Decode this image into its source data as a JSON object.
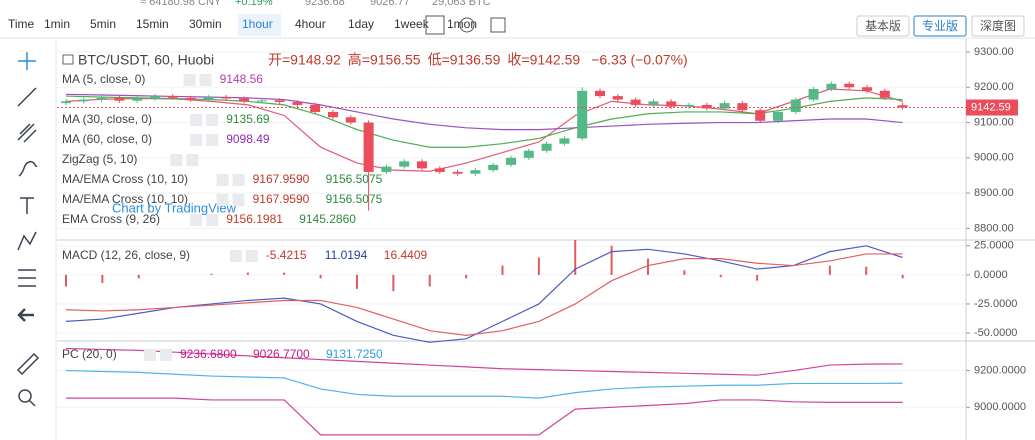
{
  "header": {
    "ticker_stats": [
      "≈ 64180.98 CNY",
      "+0.19%",
      "9236.68",
      "9026.77",
      "29,063 BTC"
    ]
  },
  "toolbar": {
    "label": "Time",
    "intervals": [
      "1min",
      "5min",
      "15min",
      "30min",
      "1hour",
      "4hour",
      "1day",
      "1week",
      "1mon"
    ],
    "active_interval": "1hour",
    "versions": [
      "基本版",
      "专业版",
      "深度图"
    ],
    "active_version": "专业版"
  },
  "price_panel": {
    "symbol": "BTC/USDT, 60, Huobi",
    "ohlc": [
      "开=9148.92",
      "高=9156.55",
      "低=9136.59",
      "收=9142.59"
    ],
    "change": "−6.33 (−0.07%)",
    "indicators": [
      {
        "name": "MA (5, close, 0)",
        "values": [
          "9148.56"
        ],
        "colors": [
          "#b23da3"
        ]
      },
      {
        "name": "MA (30, close, 0)",
        "values": [
          "9135.69"
        ],
        "colors": [
          "#2e8b3e"
        ]
      },
      {
        "name": "MA (60, close, 0)",
        "values": [
          "9098.49"
        ],
        "colors": [
          "#8e2ab0"
        ]
      },
      {
        "name": "ZigZag (5, 10)",
        "values": [],
        "colors": []
      },
      {
        "name": "MA/EMA Cross (10, 10)",
        "values": [
          "9167.9590",
          "9156.5075"
        ],
        "colors": [
          "#c0392b",
          "#2e8b3e"
        ]
      },
      {
        "name": "MA/EMA Cross (10, 10)",
        "values": [
          "9167.9590",
          "9156.5075"
        ],
        "colors": [
          "#c0392b",
          "#2e8b3e"
        ]
      },
      {
        "name": "EMA Cross (9, 26)",
        "values": [
          "9156.1981",
          "9145.2860"
        ],
        "colors": [
          "#c0392b",
          "#2e8b3e"
        ]
      }
    ],
    "watermark": "Chart by TradingView",
    "ylim": [
      8767,
      9334
    ],
    "yticks": [
      {
        "value": 9300,
        "label": "9300.00"
      },
      {
        "value": 9200,
        "label": "9200.00"
      },
      {
        "value": 9100,
        "label": "9100.00"
      },
      {
        "value": 9000,
        "label": "9000.00"
      },
      {
        "value": 8900,
        "label": "8900.00"
      },
      {
        "value": 8800,
        "label": "8800.00"
      }
    ],
    "last_price": {
      "value": 9142.59,
      "label": "9142.59"
    },
    "up_color": "#53b987",
    "down_color": "#eb4d5c",
    "candles": {
      "open": [
        9155,
        9160,
        9165,
        9170,
        9162,
        9168,
        9175,
        9170,
        9165,
        9172,
        9168,
        9160,
        9163,
        9158,
        9150,
        9130,
        9115,
        9100,
        8960,
        8975,
        8990,
        8970,
        8960,
        8955,
        8965,
        8980,
        9000,
        9020,
        9040,
        9055,
        9190,
        9175,
        9165,
        9150,
        9160,
        9145,
        9150,
        9140,
        9155,
        9135,
        9105,
        9130,
        9165,
        9195,
        9210,
        9200,
        9190,
        9148.92
      ],
      "high": [
        9166,
        9171,
        9176,
        9176,
        9174,
        9181,
        9181,
        9176,
        9178,
        9178,
        9174,
        9169,
        9169,
        9164,
        9156,
        9136,
        9121,
        9106,
        8981,
        8996,
        8996,
        8976,
        8966,
        8971,
        8986,
        9006,
        9026,
        9046,
        9061,
        9200,
        9196,
        9181,
        9171,
        9166,
        9166,
        9156,
        9156,
        9161,
        9161,
        9141,
        9136,
        9171,
        9201,
        9216,
        9216,
        9206,
        9196,
        9156.55
      ],
      "low": [
        9149,
        9154,
        9159,
        9156,
        9156,
        9162,
        9164,
        9159,
        9159,
        9162,
        9154,
        9154,
        9152,
        9144,
        9124,
        9109,
        9094,
        8850,
        8954,
        8969,
        8964,
        8954,
        8949,
        8949,
        8959,
        8974,
        8994,
        9014,
        9034,
        9049,
        9169,
        9159,
        9144,
        9144,
        9139,
        9139,
        9134,
        9134,
        9129,
        9099,
        9099,
        9124,
        9159,
        9189,
        9194,
        9184,
        9164,
        9136.59
      ],
      "close": [
        9160,
        9165,
        9170,
        9162,
        9168,
        9175,
        9170,
        9165,
        9172,
        9168,
        9160,
        9163,
        9158,
        9150,
        9130,
        9115,
        9100,
        8960,
        8975,
        8990,
        8970,
        8960,
        8955,
        8965,
        8980,
        9000,
        9020,
        9040,
        9055,
        9190,
        9175,
        9165,
        9150,
        9160,
        9145,
        9150,
        9140,
        9155,
        9135,
        9105,
        9130,
        9165,
        9195,
        9210,
        9200,
        9190,
        9170,
        9142.59
      ]
    },
    "lines": [
      {
        "color": "#e05a7a",
        "values": [
          9160,
          9166,
          9168,
          9167,
          9160,
          9150,
          9120,
          9030,
          8985,
          8965,
          8962,
          8985,
          9015,
          9045,
          9120,
          9160,
          9150,
          9148,
          9138,
          9125,
          9160,
          9195,
          9190,
          9160
        ]
      },
      {
        "color": "#4caf50",
        "values": [
          9175,
          9172,
          9170,
          9168,
          9165,
          9160,
          9150,
          9120,
          9080,
          9050,
          9030,
          9030,
          9040,
          9055,
          9085,
          9110,
          9125,
          9130,
          9130,
          9125,
          9140,
          9160,
          9170,
          9165
        ]
      },
      {
        "color": "#9c4fc0",
        "values": [
          9180,
          9178,
          9176,
          9174,
          9172,
          9170,
          9165,
          9150,
          9130,
          9110,
          9095,
          9085,
          9080,
          9080,
          9085,
          9090,
          9095,
          9098,
          9100,
          9100,
          9105,
          9110,
          9110,
          9100
        ]
      }
    ]
  },
  "macd_panel": {
    "name": "MACD (12, 26, close, 9)",
    "values": [
      "-5.4215",
      "11.0194",
      "16.4409"
    ],
    "colors": [
      "#c0392b",
      "#2a3f9c",
      "#c0392b"
    ],
    "ylim": [
      -56,
      30
    ],
    "yticks": [
      {
        "value": 25,
        "label": "25.0000"
      },
      {
        "value": 0,
        "label": "0.0000"
      },
      {
        "value": -25,
        "label": "-25.0000"
      },
      {
        "value": -50,
        "label": "-50.0000"
      }
    ],
    "histogram_color": "#e05a5a",
    "histogram": [
      -10,
      -7,
      -3,
      0,
      1,
      2,
      2,
      -3,
      -12,
      -14,
      -10,
      -3,
      8,
      15,
      30,
      25,
      14,
      4,
      -2,
      -5,
      0,
      8,
      7,
      -3
    ],
    "lines": [
      {
        "color": "#4a5ac8",
        "values": [
          -40,
          -38,
          -33,
          -28,
          -25,
          -22,
          -20,
          -25,
          -40,
          -52,
          -58,
          -55,
          -40,
          -25,
          5,
          20,
          22,
          18,
          12,
          5,
          8,
          20,
          25,
          15
        ]
      },
      {
        "color": "#e06060",
        "values": [
          -30,
          -31,
          -30,
          -28,
          -26,
          -24,
          -22,
          -22,
          -28,
          -38,
          -48,
          -52,
          -48,
          -40,
          -25,
          -5,
          8,
          14,
          14,
          10,
          8,
          12,
          18,
          18
        ]
      }
    ]
  },
  "pc_panel": {
    "name": "PC (20, 0)",
    "values": [
      "9236.6800",
      "9026.7700",
      "9131.7250"
    ],
    "colors": [
      "#c2188a",
      "#c2188a",
      "#2a9fd6"
    ],
    "ylim": [
      8822,
      9361
    ],
    "yticks": [
      {
        "value": 9200,
        "label": "9200.0000"
      },
      {
        "value": 9000,
        "label": "9000.0000"
      }
    ],
    "lines": [
      {
        "color": "#d0439b",
        "values": [
          9320,
          9315,
          9310,
          9300,
          9290,
          9280,
          9270,
          9260,
          9250,
          9240,
          9230,
          9220,
          9210,
          9205,
          9200,
          9195,
          9190,
          9185,
          9180,
          9175,
          9200,
          9230,
          9235,
          9236
        ]
      },
      {
        "color": "#4fb3e8",
        "values": [
          9200,
          9195,
          9190,
          9180,
          9170,
          9165,
          9160,
          9100,
          9070,
          9060,
          9060,
          9060,
          9060,
          9050,
          9080,
          9100,
          9110,
          9115,
          9120,
          9120,
          9130,
          9130,
          9130,
          9131
        ]
      },
      {
        "color": "#d0439b",
        "values": [
          9050,
          9050,
          9050,
          9050,
          9040,
          9040,
          9040,
          8850,
          8850,
          8850,
          8850,
          8850,
          8850,
          8850,
          8990,
          9000,
          9010,
          9020,
          9040,
          9040,
          9030,
          9027,
          9027,
          9027
        ]
      }
    ]
  }
}
